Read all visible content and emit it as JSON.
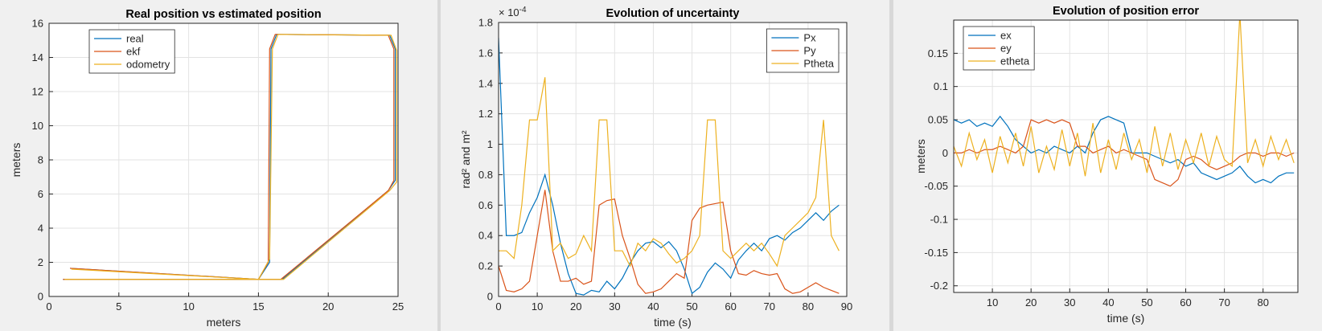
{
  "chart_data": [
    {
      "type": "line",
      "title": "Real position vs estimated position",
      "xlabel": "meters",
      "ylabel": "meters",
      "xlim": [
        0,
        25
      ],
      "xticks": [
        0,
        5,
        10,
        15,
        20,
        25
      ],
      "ylim": [
        0,
        16
      ],
      "yticks": [
        0,
        2,
        4,
        6,
        8,
        10,
        12,
        14,
        16
      ],
      "grid": true,
      "legend": "upper-left",
      "series": [
        {
          "name": "real",
          "color": "#0072bd",
          "x": [
            1.5,
            15,
            15.8,
            15.9,
            16.3,
            24.4,
            24.8,
            24.8,
            24.3,
            16.7,
            1
          ],
          "values": [
            1.65,
            1,
            2,
            14.5,
            15.35,
            15.3,
            14.5,
            6.8,
            6.2,
            1,
            1
          ]
        },
        {
          "name": "ekf",
          "color": "#d95319",
          "x": [
            1.5,
            15,
            15.7,
            15.8,
            16.2,
            24.3,
            24.7,
            24.7,
            24.3,
            16.6,
            1
          ],
          "values": [
            1.65,
            1,
            2,
            14.5,
            15.35,
            15.3,
            14.5,
            6.8,
            6.2,
            1,
            1
          ]
        },
        {
          "name": "odometry",
          "color": "#edb120",
          "x": [
            1.6,
            15,
            15.8,
            16,
            16.4,
            24.5,
            24.9,
            24.9,
            24.4,
            16.8,
            1.1
          ],
          "values": [
            1.6,
            1,
            2.2,
            14.5,
            15.35,
            15.3,
            14.4,
            6.7,
            6.2,
            1,
            1
          ]
        }
      ]
    },
    {
      "type": "line",
      "title": "Evolution of uncertainty",
      "xlabel": "time (s)",
      "ylabel": "rad² and m²",
      "y_scale": "× 10",
      "y_scale_exponent": "-4",
      "xlim": [
        0,
        90
      ],
      "xticks": [
        0,
        10,
        20,
        30,
        40,
        50,
        60,
        70,
        80,
        90
      ],
      "ylim": [
        0,
        1.8
      ],
      "yticks": [
        0,
        0.2,
        0.4,
        0.6,
        0.8,
        1,
        1.2,
        1.4,
        1.6,
        1.8
      ],
      "grid": true,
      "legend": "upper-right",
      "x": [
        0,
        2,
        4,
        6,
        8,
        10,
        12,
        14,
        16,
        18,
        20,
        22,
        24,
        26,
        28,
        30,
        32,
        34,
        36,
        38,
        40,
        42,
        44,
        46,
        48,
        50,
        52,
        54,
        56,
        58,
        60,
        62,
        64,
        66,
        68,
        70,
        72,
        74,
        76,
        78,
        80,
        82,
        84,
        86,
        88
      ],
      "series": [
        {
          "name": "Px",
          "color": "#0072bd",
          "values": [
            1.7,
            0.4,
            0.4,
            0.42,
            0.55,
            0.65,
            0.8,
            0.6,
            0.35,
            0.15,
            0.02,
            0.01,
            0.04,
            0.03,
            0.1,
            0.05,
            0.12,
            0.22,
            0.3,
            0.35,
            0.36,
            0.32,
            0.36,
            0.3,
            0.18,
            0.02,
            0.06,
            0.16,
            0.22,
            0.18,
            0.12,
            0.24,
            0.3,
            0.35,
            0.3,
            0.38,
            0.4,
            0.37,
            0.42,
            0.45,
            0.5,
            0.55,
            0.5,
            0.56,
            0.6
          ]
        },
        {
          "name": "Py",
          "color": "#d95319",
          "values": [
            0.2,
            0.04,
            0.03,
            0.05,
            0.1,
            0.4,
            0.7,
            0.3,
            0.1,
            0.1,
            0.12,
            0.08,
            0.1,
            0.6,
            0.63,
            0.64,
            0.4,
            0.25,
            0.08,
            0.02,
            0.03,
            0.05,
            0.1,
            0.15,
            0.12,
            0.5,
            0.58,
            0.6,
            0.61,
            0.62,
            0.3,
            0.15,
            0.14,
            0.17,
            0.15,
            0.14,
            0.15,
            0.05,
            0.02,
            0.03,
            0.06,
            0.09,
            0.06,
            0.04,
            0.02
          ]
        },
        {
          "name": "Ptheta",
          "color": "#edb120",
          "values": [
            0.3,
            0.3,
            0.25,
            0.6,
            1.16,
            1.16,
            1.44,
            0.3,
            0.35,
            0.25,
            0.28,
            0.4,
            0.3,
            1.16,
            1.16,
            0.3,
            0.3,
            0.2,
            0.35,
            0.3,
            0.38,
            0.35,
            0.28,
            0.22,
            0.25,
            0.3,
            0.4,
            1.16,
            1.16,
            0.3,
            0.25,
            0.3,
            0.35,
            0.3,
            0.35,
            0.28,
            0.2,
            0.4,
            0.45,
            0.5,
            0.55,
            0.65,
            1.16,
            0.4,
            0.3
          ]
        }
      ]
    },
    {
      "type": "line",
      "title": "Evolution of position error",
      "xlabel": "time (s)",
      "ylabel": "meters",
      "xlim": [
        0,
        89
      ],
      "xticks": [
        10,
        20,
        30,
        40,
        50,
        60,
        70,
        80
      ],
      "ylim": [
        -0.21,
        0.2
      ],
      "yticks": [
        -0.2,
        -0.15,
        -0.1,
        -0.05,
        0,
        0.05,
        0.1,
        0.15
      ],
      "grid": true,
      "legend": "upper-left",
      "x": [
        0,
        2,
        4,
        6,
        8,
        10,
        12,
        14,
        16,
        18,
        20,
        22,
        24,
        26,
        28,
        30,
        32,
        34,
        36,
        38,
        40,
        42,
        44,
        46,
        48,
        50,
        52,
        54,
        56,
        58,
        60,
        62,
        64,
        66,
        68,
        70,
        72,
        74,
        76,
        78,
        80,
        82,
        84,
        86,
        88
      ],
      "series": [
        {
          "name": "ex",
          "color": "#0072bd",
          "values": [
            0.05,
            0.045,
            0.05,
            0.04,
            0.045,
            0.04,
            0.055,
            0.04,
            0.02,
            0.01,
            0,
            0.005,
            0,
            0.01,
            0.005,
            0,
            0.01,
            0,
            0.03,
            0.05,
            0.055,
            0.05,
            0.045,
            0,
            0,
            0,
            -0.005,
            -0.01,
            -0.015,
            -0.01,
            -0.02,
            -0.015,
            -0.03,
            -0.035,
            -0.04,
            -0.035,
            -0.03,
            -0.02,
            -0.035,
            -0.045,
            -0.04,
            -0.045,
            -0.035,
            -0.03,
            -0.03
          ]
        },
        {
          "name": "ey",
          "color": "#d95319",
          "values": [
            0,
            0,
            0.005,
            0,
            0.005,
            0.005,
            0.01,
            0.005,
            0,
            0.01,
            0.05,
            0.045,
            0.05,
            0.045,
            0.05,
            0.045,
            0.01,
            0.01,
            0,
            0.005,
            0.01,
            0,
            0.005,
            0,
            -0.005,
            -0.01,
            -0.04,
            -0.045,
            -0.05,
            -0.04,
            -0.01,
            -0.005,
            -0.01,
            -0.02,
            -0.025,
            -0.02,
            -0.015,
            -0.005,
            0,
            0,
            -0.005,
            0,
            0,
            -0.005,
            0
          ]
        },
        {
          "name": "etheta",
          "color": "#edb120",
          "values": [
            0.01,
            -0.02,
            0.03,
            -0.01,
            0.02,
            -0.03,
            0.025,
            -0.015,
            0.03,
            -0.02,
            0.04,
            -0.03,
            0.01,
            -0.025,
            0.035,
            -0.02,
            0.03,
            -0.035,
            0.045,
            -0.03,
            0.02,
            -0.025,
            0.03,
            -0.01,
            0.02,
            -0.03,
            0.04,
            -0.02,
            0.03,
            -0.025,
            0.02,
            -0.015,
            0.03,
            -0.02,
            0.025,
            -0.01,
            -0.02,
            0.21,
            -0.015,
            0.02,
            -0.02,
            0.025,
            -0.01,
            0.02,
            -0.015
          ]
        }
      ]
    }
  ]
}
